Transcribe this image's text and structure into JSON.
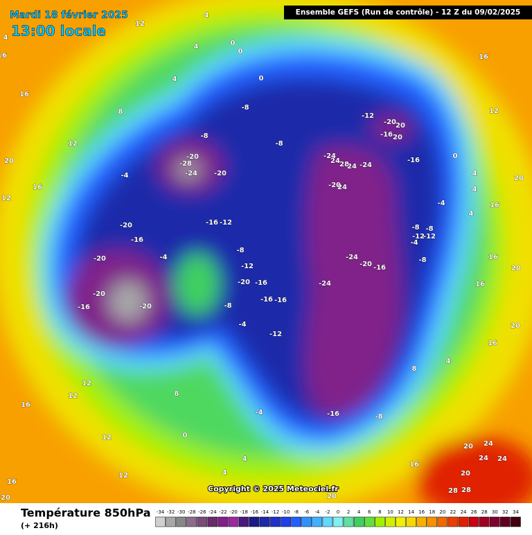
{
  "header": {
    "date": "Mardi 18 février 2025",
    "local_time": "13:00 locale",
    "model": "Ensemble GEFS  (Run de contrôle)  -  12 Z du 09/02/2025"
  },
  "map": {
    "contour_labels": [
      "4",
      "12",
      "4",
      "16",
      "4",
      "0",
      "0",
      "4",
      "8",
      "16",
      "0",
      "-8",
      "-8",
      "-8",
      "-20",
      "-28",
      "-24",
      "-20",
      "-4",
      "12",
      "16",
      "20",
      "12",
      "-20",
      "-16",
      "-20",
      "-20",
      "-16",
      "-20",
      "-16",
      "-12",
      "-8",
      "-12",
      "-4",
      "-20",
      "-16",
      "-16",
      "-16",
      "-8",
      "-4",
      "-12",
      "-12",
      "-20",
      "20",
      "-16",
      "20",
      "-24",
      "24",
      "28",
      "24",
      "-24",
      "-16",
      "-20",
      "24",
      "-24",
      "-20",
      "-16",
      "-24",
      "-4",
      "-8",
      "-8",
      "-12",
      "-12",
      "-4",
      "-8",
      "-16",
      "-8",
      "-4",
      "8",
      "12",
      "12",
      "16",
      "12",
      "12",
      "16",
      "0",
      "4",
      "4",
      "8",
      "4",
      "16",
      "20",
      "16",
      "16",
      "20",
      "0",
      "16",
      "12",
      "20",
      "16",
      "20",
      "24",
      "24",
      "24",
      "20",
      "28",
      "28",
      "16",
      "20",
      "20",
      "4",
      "4",
      "4"
    ]
  },
  "copyright": "Copyright © 2025 Meteociel.fr",
  "footer": {
    "title": "Température 850hPa",
    "lead": "(+ 216h)"
  },
  "legend": {
    "ticks": [
      -34,
      -32,
      -30,
      -28,
      -26,
      -24,
      -22,
      -20,
      -18,
      -16,
      -14,
      -12,
      -10,
      -8,
      -6,
      -4,
      -2,
      0,
      2,
      4,
      6,
      8,
      10,
      12,
      14,
      16,
      18,
      20,
      22,
      24,
      26,
      28,
      30,
      32,
      34
    ],
    "colors": [
      "#d0d0d0",
      "#a8a8a8",
      "#888888",
      "#8c6c8c",
      "#7a4a7a",
      "#6a2a6a",
      "#80208a",
      "#9a2aa0",
      "#4a1a7a",
      "#1a1a8a",
      "#1a2aaa",
      "#2030c8",
      "#2040e8",
      "#2060ff",
      "#3090ff",
      "#40b0ff",
      "#60d8ff",
      "#80f0f0",
      "#60e0a0",
      "#40d060",
      "#60e040",
      "#a0f000",
      "#d0f000",
      "#f0f000",
      "#f8d800",
      "#f8b000",
      "#f89000",
      "#f06800",
      "#e84000",
      "#e02000",
      "#c80010",
      "#a00020",
      "#800030",
      "#600020",
      "#400010"
    ]
  }
}
